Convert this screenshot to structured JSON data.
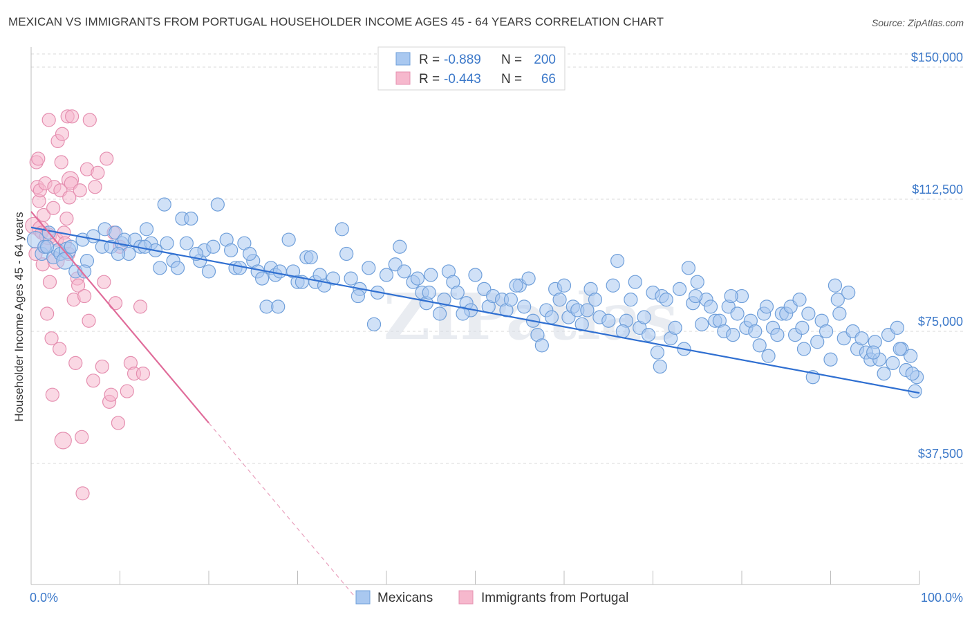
{
  "title": "MEXICAN VS IMMIGRANTS FROM PORTUGAL HOUSEHOLDER INCOME AGES 45 - 64 YEARS CORRELATION CHART",
  "source": "Source: ZipAtlas.com",
  "watermark": "ZIPatlas",
  "colors": {
    "blue": "#3b78c9",
    "blue_fill": "#a9c8f0",
    "pink": "#e06c9a",
    "pink_fill": "#f6b8cd",
    "grid": "#d8d8d8"
  },
  "legend": {
    "r_label": "R =",
    "n_label": "N =",
    "rows": [
      {
        "r": "-0.889",
        "n": "200"
      },
      {
        "r": "-0.443",
        "n": "66"
      }
    ]
  },
  "bottom_legend": [
    "Mexicans",
    "Immigrants from Portugal"
  ],
  "chart_data": {
    "type": "scatter",
    "ylabel": "Householder Income Ages 45 - 64 years",
    "xlim": [
      0,
      100
    ],
    "ylim": [
      0,
      155000
    ],
    "y_ticks": [
      {
        "value": 37500,
        "label": "$37,500"
      },
      {
        "value": 75000,
        "label": "$75,000"
      },
      {
        "value": 112500,
        "label": "$112,500"
      },
      {
        "value": 150000,
        "label": "$150,000"
      }
    ],
    "x_tick_labels": [
      "0.0%",
      "100.0%"
    ],
    "series": [
      {
        "name": "Mexicans",
        "r": -0.889,
        "n": 200,
        "trend": {
          "x": [
            0,
            100
          ],
          "y": [
            104500,
            57500
          ]
        },
        "points": [
          [
            0.5,
            101
          ],
          [
            1.2,
            97
          ],
          [
            1.5,
            99
          ],
          [
            2.0,
            103
          ],
          [
            2.5,
            96
          ],
          [
            3.0,
            98
          ],
          [
            3.3,
            97
          ],
          [
            4.1,
            98
          ],
          [
            4.5,
            99
          ],
          [
            5.0,
            92
          ],
          [
            5.8,
            101
          ],
          [
            6.3,
            95
          ],
          [
            7.0,
            102
          ],
          [
            8.0,
            99
          ],
          [
            8.3,
            104
          ],
          [
            9.0,
            99
          ],
          [
            9.5,
            103
          ],
          [
            10.2,
            100
          ],
          [
            10.5,
            101
          ],
          [
            11.0,
            97
          ],
          [
            11.7,
            101
          ],
          [
            12.3,
            99
          ],
          [
            13.0,
            104
          ],
          [
            13.5,
            100
          ],
          [
            14.0,
            98
          ],
          [
            15.0,
            111
          ],
          [
            15.3,
            100
          ],
          [
            16.0,
            95
          ],
          [
            16.5,
            93
          ],
          [
            17.0,
            107
          ],
          [
            17.5,
            100
          ],
          [
            18.0,
            107
          ],
          [
            19.0,
            95
          ],
          [
            19.5,
            98
          ],
          [
            20.0,
            92
          ],
          [
            20.5,
            99
          ],
          [
            21.0,
            111
          ],
          [
            22.0,
            101
          ],
          [
            22.5,
            98
          ],
          [
            23.0,
            93
          ],
          [
            23.5,
            93
          ],
          [
            24.0,
            100
          ],
          [
            25.0,
            95
          ],
          [
            25.5,
            92
          ],
          [
            26.0,
            90
          ],
          [
            26.5,
            82
          ],
          [
            27.0,
            93
          ],
          [
            27.5,
            91
          ],
          [
            28.0,
            92
          ],
          [
            29.0,
            101
          ],
          [
            29.5,
            92
          ],
          [
            30.0,
            89
          ],
          [
            30.5,
            89
          ],
          [
            31.0,
            96
          ],
          [
            32.0,
            89
          ],
          [
            32.5,
            91
          ],
          [
            33.0,
            88
          ],
          [
            34.0,
            90
          ],
          [
            35.0,
            104
          ],
          [
            35.5,
            97
          ],
          [
            36.0,
            90
          ],
          [
            37.0,
            87
          ],
          [
            38.0,
            93
          ],
          [
            39.0,
            86
          ],
          [
            40.0,
            91
          ],
          [
            41.0,
            94
          ],
          [
            41.5,
            99
          ],
          [
            42.0,
            92
          ],
          [
            43.0,
            89
          ],
          [
            43.5,
            90
          ],
          [
            44.0,
            86
          ],
          [
            44.5,
            83
          ],
          [
            45.0,
            91
          ],
          [
            46.0,
            80
          ],
          [
            46.5,
            84
          ],
          [
            47.0,
            92
          ],
          [
            47.5,
            89
          ],
          [
            48.0,
            86
          ],
          [
            49.0,
            83
          ],
          [
            49.5,
            81
          ],
          [
            50.0,
            91
          ],
          [
            51.0,
            87
          ],
          [
            51.5,
            82
          ],
          [
            52.0,
            85
          ],
          [
            53.0,
            84
          ],
          [
            53.5,
            81
          ],
          [
            54.0,
            84
          ],
          [
            55.0,
            88
          ],
          [
            55.5,
            82
          ],
          [
            56.0,
            90
          ],
          [
            56.5,
            78
          ],
          [
            57.0,
            74
          ],
          [
            57.5,
            71
          ],
          [
            58.0,
            81
          ],
          [
            59.0,
            87
          ],
          [
            59.5,
            84
          ],
          [
            60.0,
            88
          ],
          [
            60.5,
            79
          ],
          [
            61.0,
            82
          ],
          [
            61.5,
            81
          ],
          [
            62.0,
            77
          ],
          [
            63.0,
            87
          ],
          [
            63.5,
            84
          ],
          [
            64.0,
            79
          ],
          [
            65.0,
            78
          ],
          [
            65.5,
            88
          ],
          [
            66.0,
            95
          ],
          [
            67.0,
            78
          ],
          [
            67.5,
            84
          ],
          [
            68.0,
            89
          ],
          [
            68.5,
            76
          ],
          [
            69.0,
            79
          ],
          [
            69.5,
            74
          ],
          [
            70.0,
            86
          ],
          [
            70.5,
            69
          ],
          [
            71.0,
            85
          ],
          [
            71.5,
            84
          ],
          [
            72.0,
            73
          ],
          [
            72.5,
            76
          ],
          [
            73.0,
            87
          ],
          [
            73.5,
            70
          ],
          [
            74.0,
            93
          ],
          [
            74.5,
            83
          ],
          [
            75.0,
            89
          ],
          [
            75.5,
            77
          ],
          [
            76.0,
            84
          ],
          [
            76.5,
            82
          ],
          [
            77.0,
            78
          ],
          [
            77.5,
            78
          ],
          [
            78.0,
            75
          ],
          [
            78.5,
            82
          ],
          [
            79.0,
            74
          ],
          [
            79.5,
            80
          ],
          [
            80.0,
            85
          ],
          [
            80.5,
            76
          ],
          [
            81.0,
            78
          ],
          [
            81.5,
            75
          ],
          [
            82.0,
            71
          ],
          [
            82.5,
            80
          ],
          [
            83.0,
            68
          ],
          [
            83.5,
            76
          ],
          [
            84.0,
            74
          ],
          [
            84.5,
            80
          ],
          [
            85.0,
            80
          ],
          [
            85.5,
            82
          ],
          [
            86.0,
            74
          ],
          [
            86.5,
            84
          ],
          [
            87.0,
            70
          ],
          [
            87.5,
            80
          ],
          [
            88.0,
            62
          ],
          [
            88.5,
            72
          ],
          [
            89.0,
            78
          ],
          [
            89.5,
            75
          ],
          [
            90.0,
            67
          ],
          [
            90.5,
            88
          ],
          [
            91.0,
            80
          ],
          [
            91.5,
            73
          ],
          [
            92.0,
            86
          ],
          [
            92.5,
            75
          ],
          [
            93.0,
            70
          ],
          [
            93.5,
            73
          ],
          [
            94.0,
            69
          ],
          [
            94.5,
            67
          ],
          [
            95.0,
            72
          ],
          [
            95.5,
            67
          ],
          [
            96.0,
            63
          ],
          [
            96.5,
            74
          ],
          [
            97.0,
            66
          ],
          [
            97.5,
            76
          ],
          [
            98.0,
            70
          ],
          [
            98.5,
            64
          ],
          [
            99.0,
            68
          ],
          [
            99.5,
            58
          ],
          [
            99.7,
            62
          ],
          [
            1.8,
            99
          ],
          [
            3.8,
            95
          ],
          [
            6.0,
            92
          ],
          [
            9.8,
            97
          ],
          [
            12.8,
            99
          ],
          [
            14.5,
            93
          ],
          [
            18.6,
            97
          ],
          [
            24.6,
            97
          ],
          [
            27.8,
            82
          ],
          [
            31.5,
            96
          ],
          [
            36.8,
            85
          ],
          [
            38.6,
            77
          ],
          [
            44.8,
            86
          ],
          [
            48.6,
            80
          ],
          [
            54.6,
            88
          ],
          [
            58.6,
            79
          ],
          [
            62.6,
            81
          ],
          [
            66.6,
            75
          ],
          [
            70.8,
            65
          ],
          [
            74.8,
            85
          ],
          [
            78.8,
            85
          ],
          [
            82.8,
            82
          ],
          [
            86.8,
            76
          ],
          [
            90.8,
            84
          ],
          [
            94.8,
            69
          ],
          [
            97.8,
            70
          ],
          [
            99.2,
            63
          ]
        ]
      },
      {
        "name": "Immigrants from Portugal",
        "r": -0.443,
        "n": 66,
        "trend": {
          "x": [
            0,
            20
          ],
          "y": [
            109000,
            49000
          ]
        },
        "points": [
          [
            0.3,
            105
          ],
          [
            0.5,
            97
          ],
          [
            0.6,
            123
          ],
          [
            0.7,
            116
          ],
          [
            0.8,
            124
          ],
          [
            0.9,
            112
          ],
          [
            1.0,
            115
          ],
          [
            1.1,
            104
          ],
          [
            1.2,
            103
          ],
          [
            1.3,
            94
          ],
          [
            1.4,
            108
          ],
          [
            1.5,
            99
          ],
          [
            1.6,
            117
          ],
          [
            1.8,
            80
          ],
          [
            1.9,
            102
          ],
          [
            2.0,
            135
          ],
          [
            2.1,
            89
          ],
          [
            2.3,
            73
          ],
          [
            2.4,
            57
          ],
          [
            2.5,
            110
          ],
          [
            2.6,
            116
          ],
          [
            2.8,
            95
          ],
          [
            2.9,
            101
          ],
          [
            3.0,
            129
          ],
          [
            3.2,
            70
          ],
          [
            3.3,
            115
          ],
          [
            3.4,
            123
          ],
          [
            3.5,
            131
          ],
          [
            3.6,
            44
          ],
          [
            3.7,
            103
          ],
          [
            3.8,
            100
          ],
          [
            4.0,
            107
          ],
          [
            4.1,
            136
          ],
          [
            4.2,
            97
          ],
          [
            4.3,
            113
          ],
          [
            4.4,
            118
          ],
          [
            4.5,
            117
          ],
          [
            4.6,
            136
          ],
          [
            4.8,
            84
          ],
          [
            5.0,
            66
          ],
          [
            5.2,
            90
          ],
          [
            5.3,
            88
          ],
          [
            5.5,
            115
          ],
          [
            5.7,
            45
          ],
          [
            5.8,
            29
          ],
          [
            6.0,
            85
          ],
          [
            6.3,
            121
          ],
          [
            6.5,
            78
          ],
          [
            6.6,
            135
          ],
          [
            7.0,
            61
          ],
          [
            7.2,
            116
          ],
          [
            7.5,
            120
          ],
          [
            8.0,
            65
          ],
          [
            8.2,
            89
          ],
          [
            8.5,
            124
          ],
          [
            8.8,
            55
          ],
          [
            9.0,
            57
          ],
          [
            9.3,
            103
          ],
          [
            9.5,
            83
          ],
          [
            9.8,
            49
          ],
          [
            10.0,
            99
          ],
          [
            10.8,
            58
          ],
          [
            11.2,
            66
          ],
          [
            11.6,
            63
          ],
          [
            12.3,
            82
          ],
          [
            12.6,
            63
          ]
        ]
      }
    ]
  }
}
